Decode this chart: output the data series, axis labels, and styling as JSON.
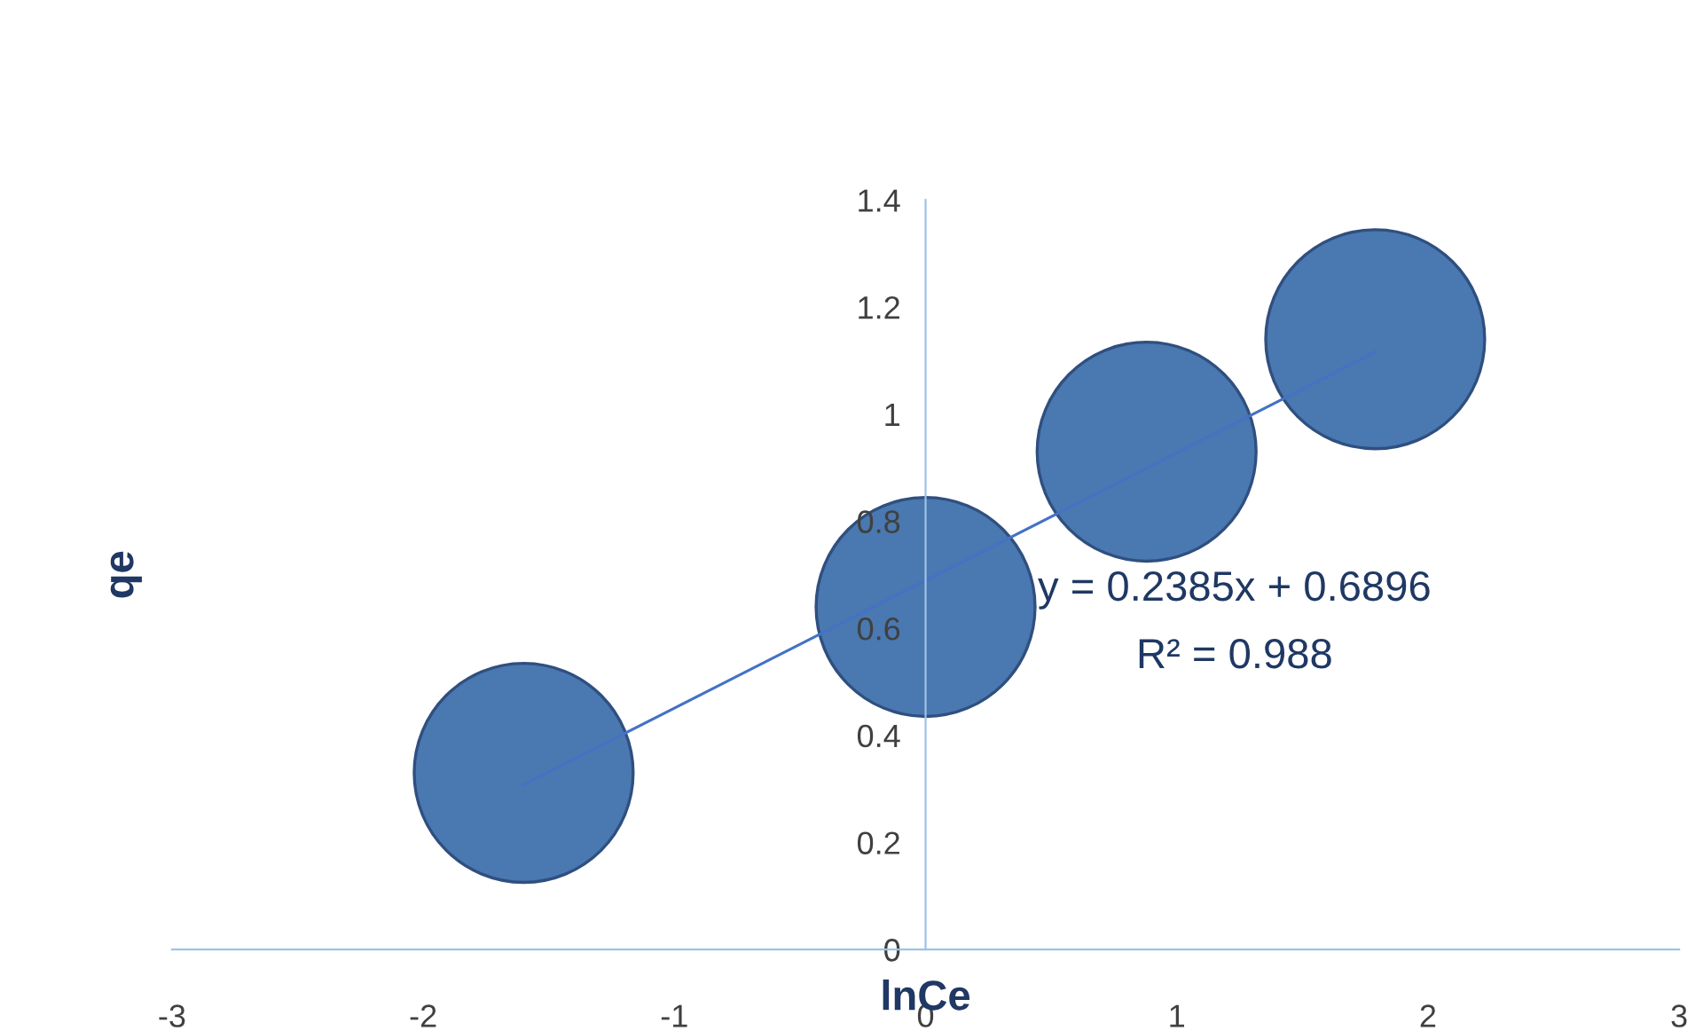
{
  "chart_data": {
    "type": "bubble",
    "xlabel": "lnCe",
    "ylabel": "qe",
    "x": [
      -1.6,
      0,
      0.88,
      1.79
    ],
    "values": [
      0.33,
      0.64,
      0.93,
      1.14
    ],
    "sizes": [
      1,
      1,
      1,
      1
    ],
    "color": "#4a78b0",
    "series": [
      {
        "type": "line",
        "color": "#4472c4",
        "x": [
          -1.6,
          1.79
        ],
        "values": [
          0.308,
          1.116
        ]
      }
    ],
    "annotations": [
      "y = 0.2385x + 0.6896",
      "R² = 0.988"
    ],
    "xlim": [
      -3,
      3
    ],
    "xticks": [
      -3,
      -2,
      -1,
      0,
      1,
      2,
      3
    ],
    "ylim": [
      0,
      1.4
    ],
    "yticks": [
      0,
      0.2,
      0.4,
      0.6,
      0.8,
      1,
      1.2,
      1.4
    ],
    "grid": false,
    "legend": false
  }
}
